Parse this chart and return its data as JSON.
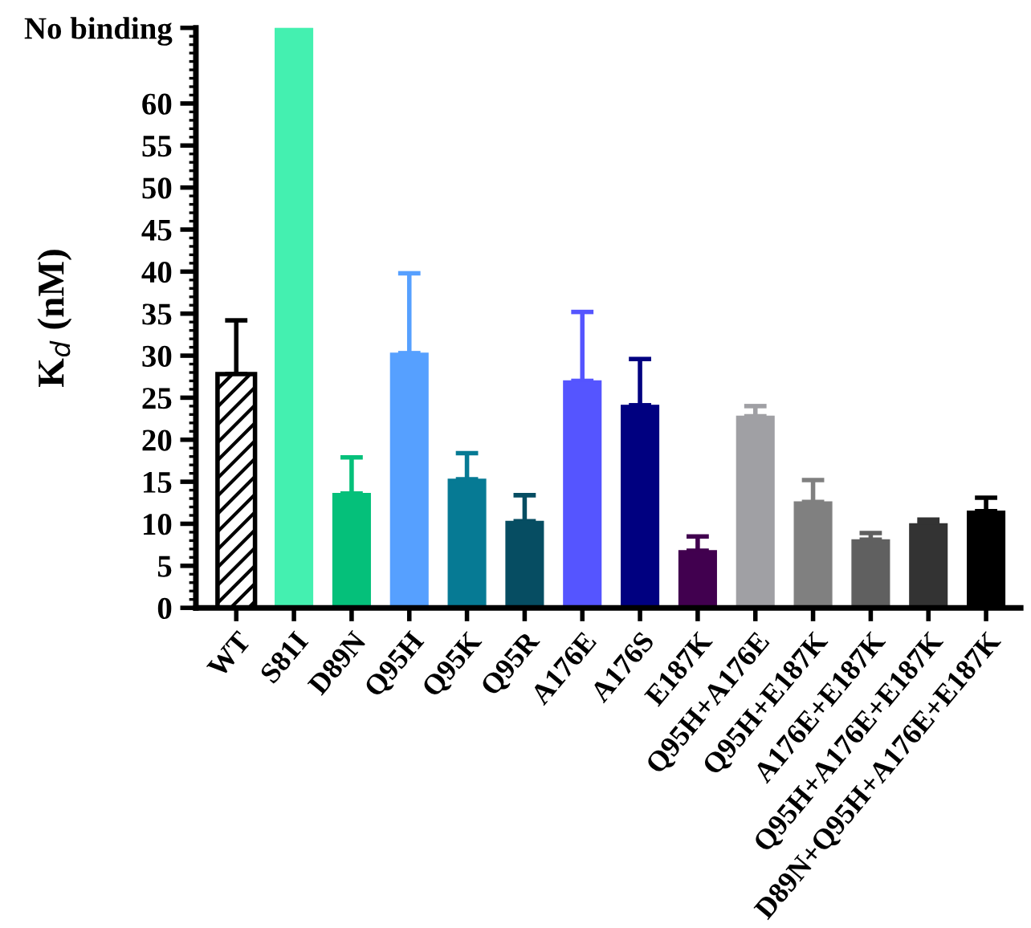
{
  "chart_data": {
    "type": "bar",
    "ylabel": "K$_{d}$ (nM)",
    "categories": [
      "WT",
      "S81I",
      "D89N",
      "Q95H",
      "Q95K",
      "Q95R",
      "A176E",
      "A176S",
      "E187K",
      "Q95H+A176E",
      "Q95H+E187K",
      "A176E+E187K",
      "Q95H+A176E+E187K",
      "D89N+Q95H+A176E+E187K"
    ],
    "values": [
      27.8,
      69,
      13.6,
      30.3,
      15.3,
      10.3,
      27,
      24.1,
      6.8,
      22.8,
      12.6,
      8.1,
      10.0,
      11.5
    ],
    "errors": [
      [
        27.8,
        34.2
      ],
      null,
      [
        13.6,
        17.9
      ],
      [
        30.3,
        39.8
      ],
      [
        15.3,
        18.4
      ],
      [
        10.3,
        13.4
      ],
      [
        27,
        35.2
      ],
      [
        24.1,
        29.6
      ],
      [
        6.8,
        8.5
      ],
      [
        22.8,
        24.0
      ],
      [
        12.6,
        15.2
      ],
      [
        8.1,
        8.9
      ],
      [
        10.0,
        10.5
      ],
      [
        11.5,
        13.1
      ]
    ],
    "colors": [
      "#ffffff",
      "#44f0b0",
      "#05c07a",
      "#56a0ff",
      "#067a94",
      "#064d62",
      "#5555ff",
      "#000080",
      "#41004f",
      "#a0a0a4",
      "#808080",
      "#606060",
      "#333333",
      "#000000"
    ],
    "ylim": [
      0,
      69
    ],
    "yticks": [
      0,
      5,
      10,
      15,
      20,
      25,
      30,
      35,
      40,
      45,
      50,
      55,
      60,
      {
        "value": 69,
        "label": "No binding"
      }
    ],
    "grid": false,
    "legend": false
  }
}
